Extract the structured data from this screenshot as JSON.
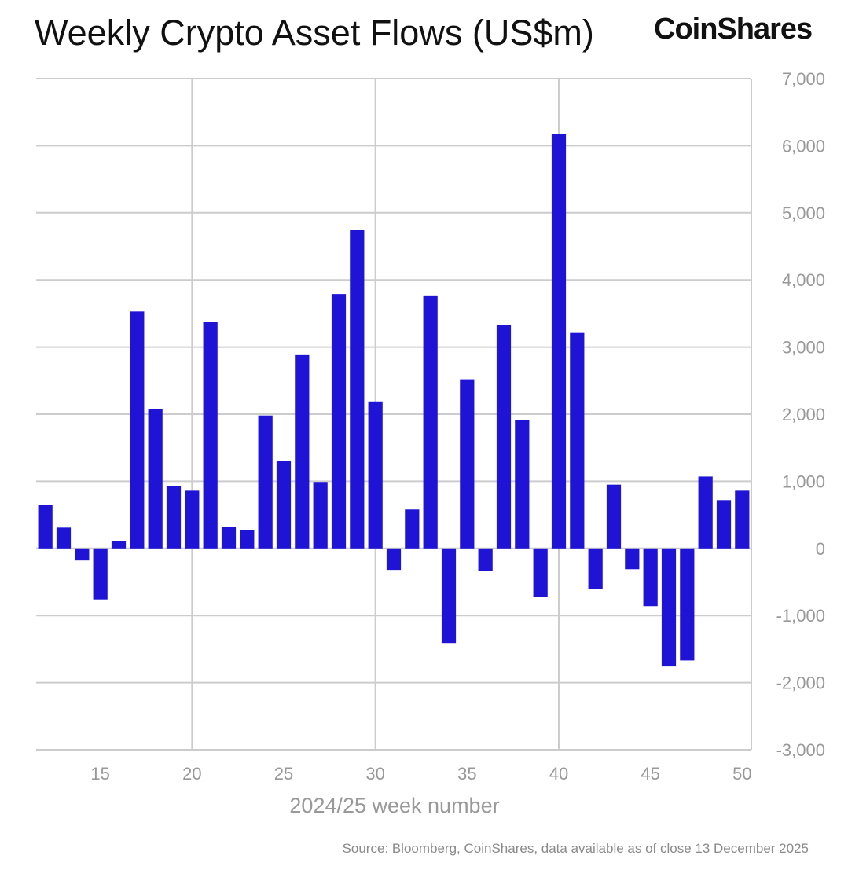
{
  "header": {
    "title": "Weekly Crypto Asset Flows (US$m)",
    "brand": "CoinShares"
  },
  "footer": {
    "source": "Source: Bloomberg, CoinShares, data available as of close 13 December 2025"
  },
  "colors": {
    "bar": "#1f14d6",
    "grid": "#cccccc",
    "axis_text": "#999999"
  },
  "chart_data": {
    "type": "bar",
    "title": "Weekly Crypto Asset Flows (US$m)",
    "xlabel": "2024/25 week number",
    "ylabel": "US$m",
    "ylim": [
      -3000,
      7000
    ],
    "y_ticks": [
      7000,
      6000,
      5000,
      4000,
      3000,
      2000,
      1000,
      0,
      -1000,
      -2000,
      -3000
    ],
    "y_tick_labels": [
      "7,000",
      "6,000",
      "5,000",
      "4,000",
      "3,000",
      "2,000",
      "1,000",
      "0",
      "-1,000",
      "-2,000",
      "-3,000"
    ],
    "x_ticks": [
      15,
      20,
      25,
      30,
      35,
      40,
      45,
      50
    ],
    "x_tick_labels": [
      "15",
      "20",
      "25",
      "30",
      "35",
      "40",
      "45",
      "50"
    ],
    "y_axis_position": "right",
    "grid": true,
    "categories": [
      12,
      13,
      14,
      15,
      16,
      17,
      18,
      19,
      20,
      21,
      22,
      23,
      24,
      25,
      26,
      27,
      28,
      29,
      30,
      31,
      32,
      33,
      34,
      35,
      36,
      37,
      38,
      39,
      40,
      41,
      42,
      43,
      44,
      45,
      46,
      47,
      48,
      49,
      50
    ],
    "values": [
      650,
      310,
      -180,
      -760,
      110,
      3530,
      2080,
      930,
      860,
      3370,
      320,
      270,
      1980,
      1300,
      2880,
      990,
      3790,
      4740,
      2190,
      -320,
      580,
      3770,
      -1410,
      2520,
      -340,
      3330,
      1910,
      -720,
      6170,
      3210,
      -600,
      950,
      -310,
      -860,
      -1760,
      -1670,
      1070,
      720,
      860
    ]
  }
}
